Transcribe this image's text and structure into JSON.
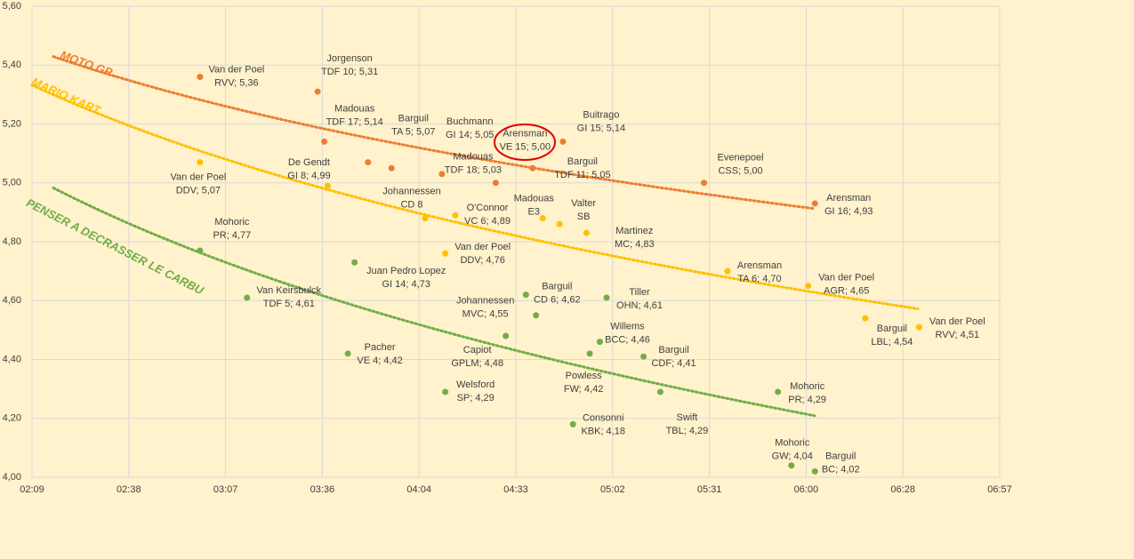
{
  "chart_data": {
    "type": "scatter",
    "xlim": [
      129,
      417
    ],
    "xticks": [
      {
        "value": 129,
        "label": "02:09"
      },
      {
        "value": 157.8,
        "label": "02:38"
      },
      {
        "value": 186.6,
        "label": "03:07"
      },
      {
        "value": 215.4,
        "label": "03:36"
      },
      {
        "value": 244.2,
        "label": "04:04"
      },
      {
        "value": 273,
        "label": "04:33"
      },
      {
        "value": 301.8,
        "label": "05:02"
      },
      {
        "value": 330.6,
        "label": "05:31"
      },
      {
        "value": 359.4,
        "label": "06:00"
      },
      {
        "value": 388.2,
        "label": "06:28"
      },
      {
        "value": 417,
        "label": "06:57"
      }
    ],
    "ylim": [
      4,
      5.6
    ],
    "yticks": [
      {
        "value": 4,
        "label": "4,00"
      },
      {
        "value": 4.2,
        "label": "4,20"
      },
      {
        "value": 4.4,
        "label": "4,40"
      },
      {
        "value": 4.6,
        "label": "4,60"
      },
      {
        "value": 4.8,
        "label": "4,80"
      },
      {
        "value": 5,
        "label": "5,00"
      },
      {
        "value": 5.2,
        "label": "5,20"
      },
      {
        "value": 5.4,
        "label": "5,40"
      },
      {
        "value": 5.6,
        "label": "5,60"
      }
    ],
    "grid": true,
    "trendline": "logarithmic",
    "series": [
      {
        "name": "MOTO GP",
        "color": "#ed7d31",
        "x": [
          179,
          214,
          216,
          229,
          236,
          251,
          267,
          278,
          287,
          329,
          362
        ],
        "values": [
          5.36,
          5.31,
          5.14,
          5.07,
          5.05,
          5.03,
          5.0,
          5.05,
          5.14,
          5.0,
          4.93
        ],
        "labels": [
          [
            "Van der Poel",
            "RVV; 5,36"
          ],
          [
            "Jorgenson",
            "TDF 10; 5,31"
          ],
          [
            "Madouas",
            "TDF 17; 5,14"
          ],
          [
            "Barguil",
            "TA 5; 5,07"
          ],
          [
            "Buchmann",
            "GI 14; 5,05"
          ],
          [
            "Madouas",
            "TDF 18; 5,03"
          ],
          [
            "Arensman",
            "VE 15; 5,00"
          ],
          [
            "Barguil",
            "TDF 11; 5,05"
          ],
          [
            "Buitrago",
            "GI 15; 5,14"
          ],
          [
            "Evenepoel",
            "CSS; 5,00"
          ],
          [
            "Arensman",
            "GI 16; 4,93"
          ]
        ]
      },
      {
        "name": "MARIO KART",
        "color": "#ffc000",
        "x": [
          179,
          217,
          246,
          255,
          281,
          286,
          294,
          252,
          336,
          360,
          377,
          393
        ],
        "values": [
          5.07,
          4.99,
          4.88,
          4.89,
          4.88,
          4.86,
          4.83,
          4.76,
          4.7,
          4.65,
          4.54,
          4.51
        ],
        "labels": [
          [
            "Van der Poel",
            "DDV; 5,07"
          ],
          [
            "De Gendt",
            "GI 8; 4,99"
          ],
          [
            "Johannessen",
            "CD 8"
          ],
          [
            "O'Connor",
            "VC 6; 4,89"
          ],
          [
            "Madouas",
            "E3"
          ],
          [
            "Valter",
            "SB"
          ],
          [
            "Martinez",
            "MC; 4,83"
          ],
          [
            "Van der Poel",
            "DDV; 4,76"
          ],
          [
            "Arensman",
            "TA 6; 4,70"
          ],
          [
            "Van der Poel",
            "AGR; 4,65"
          ],
          [
            "Barguil",
            "LBL; 4,54"
          ],
          [
            "Van der Poel",
            "RVV; 4,51"
          ]
        ]
      },
      {
        "name": "PENSER A DECRASSER LE CARBU",
        "color": "#70ad47",
        "x": [
          179,
          193,
          225,
          223,
          279,
          276,
          270,
          252,
          300,
          298,
          295,
          311,
          290,
          316,
          351,
          355,
          362
        ],
        "values": [
          4.77,
          4.61,
          4.73,
          4.42,
          4.55,
          4.62,
          4.48,
          4.29,
          4.61,
          4.46,
          4.42,
          4.41,
          4.18,
          4.29,
          4.29,
          4.04,
          4.02
        ],
        "labels": [
          [
            "Mohoric",
            "PR; 4,77"
          ],
          [
            "Van Keirsbulck",
            "TDF 5; 4,61"
          ],
          [
            "Juan Pedro Lopez",
            "GI 14; 4,73"
          ],
          [
            "Pacher",
            "VE 4; 4,42"
          ],
          [
            "Johannessen",
            "MVC; 4,55"
          ],
          [
            "Barguil",
            "CD 6; 4,62"
          ],
          [
            "Capiot",
            "GPLM; 4,48"
          ],
          [
            "Welsford",
            "SP; 4,29"
          ],
          [
            "Tiller",
            "OHN; 4,61"
          ],
          [
            "Willems",
            "BCC; 4,46"
          ],
          [
            "Powless",
            "FW; 4,42"
          ],
          [
            "Barguil",
            "CDF; 4,41"
          ],
          [
            "Consonni",
            "KBK; 4,18"
          ],
          [
            "Swift",
            "TBL; 4,29"
          ],
          [
            "Mohoric",
            "PR; 4,29"
          ],
          [
            "Mohoric",
            "GW; 4,04"
          ],
          [
            "Barguil",
            "BC; 4,02"
          ]
        ]
      }
    ]
  }
}
